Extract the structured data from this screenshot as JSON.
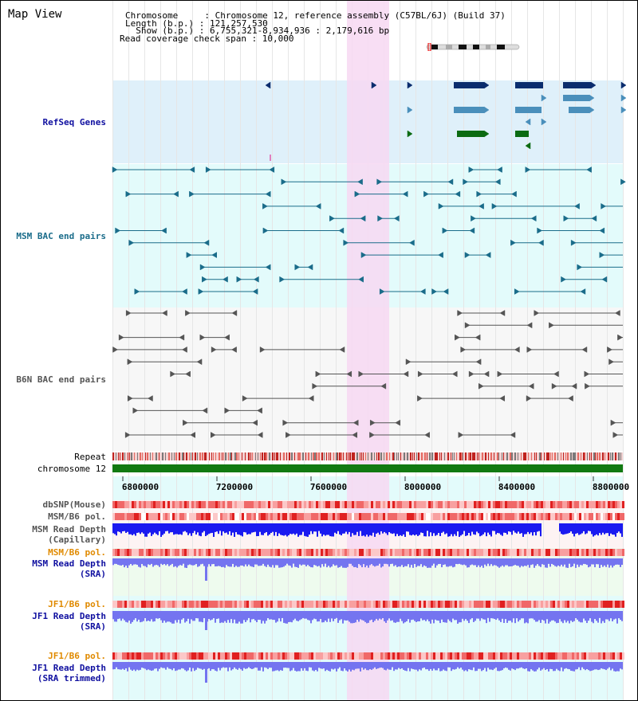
{
  "header": {
    "view_title": "Map View",
    "chromosome_line": "Chromosome     : Chromosome 12, reference assembly (C57BL/6J) (Build 37)",
    "length_line": "Length (b.p.) : 121,257,530",
    "show_line": "  Show (b.p.) : 6,755,321-8,934,936 : 2,179,616 bp",
    "coverage_line": "Read coverage check span : 10,000"
  },
  "tracks": {
    "refseq": "RefSeq Genes",
    "msm_bac": "MSM BAC end pairs",
    "b6n_bac": "B6N BAC end pairs",
    "repeat": "Repeat",
    "chromosome": "chromosome 12",
    "dbsnp": "dbSNP(Mouse)",
    "msm_b6_pol_1": "MSM/B6 pol.",
    "msm_depth_cap_1": "MSM Read Depth",
    "msm_depth_cap_2": "(Capillary)",
    "msm_b6_pol_2": "MSM/B6 pol.",
    "msm_depth_sra_1": "MSM Read Depth",
    "msm_depth_sra_2": "(SRA)",
    "jf1_b6_pol_1": "JF1/B6 pol.",
    "jf1_depth_sra_1": "JF1 Read Depth",
    "jf1_depth_sra_2": "(SRA)",
    "jf1_b6_pol_2": "JF1/B6 pol.",
    "jf1_depth_trim_1": "JF1 Read Depth",
    "jf1_depth_trim_2": "(SRA trimmed)"
  },
  "axis": {
    "ticks": [
      "6800000",
      "7200000",
      "7600000",
      "8000000",
      "8400000",
      "8800000"
    ]
  },
  "colors": {
    "refseq_bg": "#dff0fa",
    "msm_bg": "#e3fbfb",
    "b6n_bg": "#f7f7f7",
    "highlight": "#f7d8f2",
    "refseq_dark": "#0b2d6e",
    "refseq_mid": "#4a8fbb",
    "refseq_green": "#0c6b12",
    "msm_feature": "#1a6c8a",
    "b6n_feature": "#555555",
    "chromosome_bar": "#127a12",
    "depth_blue": "#1a1af0",
    "depth_light": "#7474f0",
    "label_navy": "#1010a0",
    "label_orange": "#e08a00",
    "label_teal": "#1a6c8a"
  }
}
